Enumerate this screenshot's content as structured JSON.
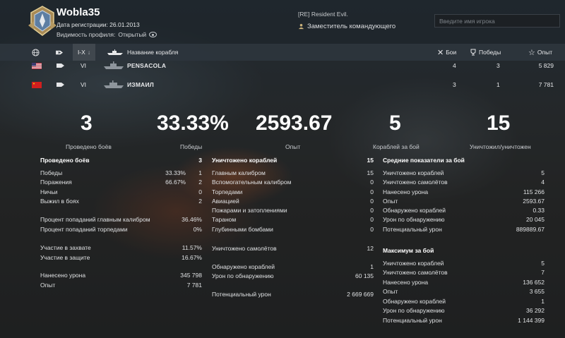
{
  "player": {
    "nickname": "Wobla35",
    "registration": "Дата регистрации: 26.01.2013",
    "visibility_label": "Видимость профиля:",
    "visibility_value": "Открытый",
    "clan_tag": "[RE] Resident Evil.",
    "clan_role": "Заместитель командующего"
  },
  "search": {
    "placeholder": "Введите имя игрока"
  },
  "table_header": {
    "tier": "I-X",
    "ship_name": "Название корабля",
    "battles": "Бои",
    "wins": "Победы",
    "xp": "Опыт"
  },
  "rows": [
    {
      "tier": "VI",
      "name": "PENSACOLA",
      "battles": "4",
      "wins": "3",
      "xp": "5 829",
      "flag_color": "#b22234"
    },
    {
      "tier": "VI",
      "name": "ИЗМАИЛ",
      "battles": "3",
      "wins": "1",
      "xp": "7 781",
      "flag_color": "#d21f1f"
    }
  ],
  "summary": [
    {
      "value": "3",
      "label": "Проведено боёв"
    },
    {
      "value": "33.33%",
      "label": "Победы"
    },
    {
      "value": "2593.67",
      "label": "Опыт"
    },
    {
      "value": "5",
      "label": "Кораблей за бой"
    },
    {
      "value": "15",
      "label": "Уничтожил/уничтожен"
    }
  ],
  "col1": {
    "header": {
      "label": "Проведено боёв",
      "value": "3"
    },
    "wins": {
      "label": "Победы",
      "pct": "33.33%",
      "value": "1"
    },
    "losses": {
      "label": "Поражения",
      "pct": "66.67%",
      "value": "2"
    },
    "draws": {
      "label": "Ничьи",
      "value": "0"
    },
    "survived": {
      "label": "Выжил в боях",
      "value": "2"
    },
    "main_hit": {
      "label": "Процент попаданий главным калибром",
      "value": "36.46%"
    },
    "torp_hit": {
      "label": "Процент попаданий торпедами",
      "value": "0%"
    },
    "capture": {
      "label": "Участие в захвате",
      "value": "11.57%"
    },
    "defense": {
      "label": "Участие в защите",
      "value": "16.67%"
    },
    "damage": {
      "label": "Нанесено урона",
      "value": "345 798"
    },
    "xp": {
      "label": "Опыт",
      "value": "7 781"
    }
  },
  "col2": {
    "header": {
      "label": "Уничтожено кораблей",
      "value": "15"
    },
    "main": {
      "label": "Главным калибром",
      "value": "15"
    },
    "secondary": {
      "label": "Вспомогательным калибром",
      "value": "0"
    },
    "torpedoes": {
      "label": "Торпедами",
      "value": "0"
    },
    "aviation": {
      "label": "Авиацией",
      "value": "0"
    },
    "fires": {
      "label": "Пожарами и затоплениями",
      "value": "0"
    },
    "ram": {
      "label": "Тараном",
      "value": "0"
    },
    "depth": {
      "label": "Глубинными бомбами",
      "value": "0"
    },
    "planes": {
      "label": "Уничтожено самолётов",
      "value": "12"
    },
    "spotted": {
      "label": "Обнаружено кораблей",
      "value": "1"
    },
    "spot_dmg": {
      "label": "Урон по обнаружению",
      "value": "60 135"
    },
    "potential": {
      "label": "Потенциальный урон",
      "value": "2 669 669"
    }
  },
  "col3": {
    "avg_header": "Средние показатели за бой",
    "avg": [
      {
        "label": "Уничтожено кораблей",
        "value": "5"
      },
      {
        "label": "Уничтожено самолётов",
        "value": "4"
      },
      {
        "label": "Нанесено урона",
        "value": "115 266"
      },
      {
        "label": "Опыт",
        "value": "2593.67"
      },
      {
        "label": "Обнаружено кораблей",
        "value": "0.33"
      },
      {
        "label": "Урон по обнаружению",
        "value": "20 045"
      },
      {
        "label": "Потенциальный урон",
        "value": "889889.67"
      }
    ],
    "max_header": "Максимум за бой",
    "max": [
      {
        "label": "Уничтожено кораблей",
        "value": "5"
      },
      {
        "label": "Уничтожено самолётов",
        "value": "7"
      },
      {
        "label": "Нанесено урона",
        "value": "136 652"
      },
      {
        "label": "Опыт",
        "value": "3 655"
      },
      {
        "label": "Обнаружено кораблей",
        "value": "1"
      },
      {
        "label": "Урон по обнаружению",
        "value": "36 292"
      },
      {
        "label": "Потенциальный урон",
        "value": "1 144 399"
      }
    ]
  }
}
